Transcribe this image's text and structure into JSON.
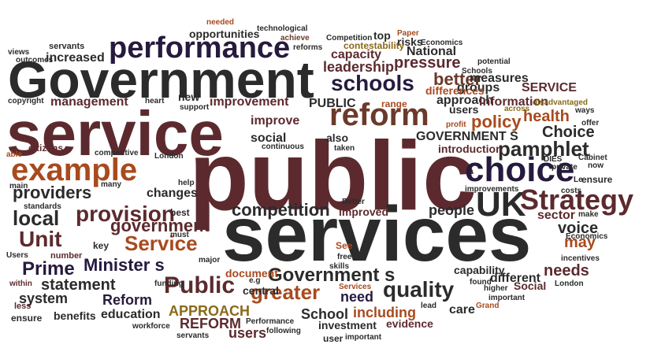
{
  "palette": {
    "dark": "#2b2b2b",
    "maroon": "#5c2a2e",
    "navy": "#261a3e",
    "rust": "#a84a1e",
    "gold": "#8a6a18",
    "brown": "#6b3a2a"
  },
  "words": [
    {
      "id": "public",
      "text": "public",
      "c": "maroon"
    },
    {
      "id": "services",
      "text": "services",
      "c": "dark"
    },
    {
      "id": "service",
      "text": "service",
      "c": "maroon"
    },
    {
      "id": "Government",
      "text": "Government",
      "c": "dark"
    },
    {
      "id": "example",
      "text": "example",
      "c": "rust"
    },
    {
      "id": "performance",
      "text": "performance",
      "c": "navy"
    },
    {
      "id": "reform",
      "text": "reform",
      "c": "brown"
    },
    {
      "id": "choice",
      "text": "choice",
      "c": "navy"
    },
    {
      "id": "UK",
      "text": "UK",
      "c": "dark"
    },
    {
      "id": "Strategy",
      "text": "Strategy",
      "c": "maroon"
    },
    {
      "id": "Unit",
      "text": "Unit",
      "c": "maroon"
    },
    {
      "id": "Public",
      "text": "Public",
      "c": "maroon"
    },
    {
      "id": "provision",
      "text": "provision",
      "c": "maroon"
    },
    {
      "id": "local",
      "text": "local",
      "c": "dark"
    },
    {
      "id": "Service",
      "text": "Service",
      "c": "rust"
    },
    {
      "id": "Minister_s",
      "text": "Minister s",
      "c": "navy"
    },
    {
      "id": "providers",
      "text": "providers",
      "c": "dark"
    },
    {
      "id": "schools",
      "text": "schools",
      "c": "navy"
    },
    {
      "id": "quality",
      "text": "quality",
      "c": "dark"
    },
    {
      "id": "greater",
      "text": "greater",
      "c": "rust"
    },
    {
      "id": "Government_s",
      "text": "Government s",
      "c": "dark"
    },
    {
      "id": "Prime",
      "text": "Prime",
      "c": "navy"
    },
    {
      "id": "pamphlet",
      "text": "pamphlet",
      "c": "dark"
    },
    {
      "id": "competition",
      "text": "competition",
      "c": "dark"
    },
    {
      "id": "government",
      "text": "government",
      "c": "maroon"
    },
    {
      "id": "health",
      "text": "health",
      "c": "rust"
    },
    {
      "id": "policy",
      "text": "policy",
      "c": "rust"
    },
    {
      "id": "Choice",
      "text": "Choice",
      "c": "dark"
    },
    {
      "id": "better",
      "text": "better",
      "c": "brown"
    },
    {
      "id": "pressure",
      "text": "pressure",
      "c": "maroon"
    },
    {
      "id": "needs",
      "text": "needs",
      "c": "maroon"
    },
    {
      "id": "voice",
      "text": "voice",
      "c": "dark"
    },
    {
      "id": "may",
      "text": "may",
      "c": "rust"
    },
    {
      "id": "statement",
      "text": "statement",
      "c": "dark"
    },
    {
      "id": "Reform",
      "text": "Reform",
      "c": "navy"
    },
    {
      "id": "REFORM",
      "text": "REFORM",
      "c": "maroon"
    },
    {
      "id": "APPROACH",
      "text": "APPROACH",
      "c": "gold"
    },
    {
      "id": "School",
      "text": "School",
      "c": "dark"
    },
    {
      "id": "need",
      "text": "need",
      "c": "navy"
    },
    {
      "id": "including",
      "text": "including",
      "c": "rust"
    },
    {
      "id": "system",
      "text": "system",
      "c": "dark"
    },
    {
      "id": "education",
      "text": "education",
      "c": "dark"
    },
    {
      "id": "users_bottom",
      "text": "users",
      "c": "maroon"
    },
    {
      "id": "people",
      "text": "people",
      "c": "dark"
    },
    {
      "id": "sector",
      "text": "sector",
      "c": "maroon"
    },
    {
      "id": "National",
      "text": "National",
      "c": "dark"
    },
    {
      "id": "leadership",
      "text": "leadership",
      "c": "maroon"
    },
    {
      "id": "capacity",
      "text": "capacity",
      "c": "maroon"
    },
    {
      "id": "increased",
      "text": "increased",
      "c": "dark"
    },
    {
      "id": "management",
      "text": "management",
      "c": "maroon"
    },
    {
      "id": "improvement",
      "text": "improvement",
      "c": "maroon"
    },
    {
      "id": "improve",
      "text": "improve",
      "c": "maroon"
    },
    {
      "id": "social",
      "text": "social",
      "c": "dark"
    },
    {
      "id": "changes",
      "text": "changes",
      "c": "dark"
    },
    {
      "id": "approach",
      "text": "approach",
      "c": "dark"
    },
    {
      "id": "information",
      "text": "information",
      "c": "maroon"
    },
    {
      "id": "SERVICE",
      "text": "SERVICE",
      "c": "maroon"
    },
    {
      "id": "measures",
      "text": "measures",
      "c": "dark"
    },
    {
      "id": "groups",
      "text": "groups",
      "c": "dark"
    },
    {
      "id": "PUBLIC",
      "text": "PUBLIC",
      "c": "dark"
    },
    {
      "id": "GOVERNMENT_S",
      "text": "GOVERNMENT S",
      "c": "dark"
    },
    {
      "id": "introduction",
      "text": "introduction",
      "c": "maroon"
    },
    {
      "id": "users_mid",
      "text": "users",
      "c": "dark"
    },
    {
      "id": "opportunities",
      "text": "opportunities",
      "c": "dark"
    },
    {
      "id": "new",
      "text": "new",
      "c": "dark"
    },
    {
      "id": "key",
      "text": "key",
      "c": "dark"
    },
    {
      "id": "best",
      "text": "best",
      "c": "dark"
    },
    {
      "id": "improved",
      "text": "improved",
      "c": "maroon"
    },
    {
      "id": "different",
      "text": "different",
      "c": "dark"
    },
    {
      "id": "capability",
      "text": "capability",
      "c": "dark"
    },
    {
      "id": "document",
      "text": "document",
      "c": "rust"
    },
    {
      "id": "central",
      "text": "central",
      "c": "dark"
    },
    {
      "id": "investment",
      "text": "investment",
      "c": "dark"
    },
    {
      "id": "care",
      "text": "care",
      "c": "dark"
    },
    {
      "id": "evidence",
      "text": "evidence",
      "c": "maroon"
    },
    {
      "id": "benefits",
      "text": "benefits",
      "c": "dark"
    },
    {
      "id": "Social",
      "text": "Social",
      "c": "maroon"
    },
    {
      "id": "top",
      "text": "top",
      "c": "dark"
    },
    {
      "id": "risks",
      "text": "risks",
      "c": "dark"
    },
    {
      "id": "differences",
      "text": "differences",
      "c": "rust"
    },
    {
      "id": "contestability",
      "text": "contestability",
      "c": "gold"
    },
    {
      "id": "also",
      "text": "also",
      "c": "dark"
    },
    {
      "id": "see_lower",
      "text": "See",
      "c": "rust"
    },
    {
      "id": "needed",
      "text": "needed",
      "c": "rust"
    },
    {
      "id": "technological",
      "text": "technological",
      "c": "dark"
    },
    {
      "id": "achieve",
      "text": "achieve",
      "c": "brown"
    },
    {
      "id": "reforms",
      "text": "reforms",
      "c": "dark"
    },
    {
      "id": "Competition",
      "text": "Competition",
      "c": "dark"
    },
    {
      "id": "Paper",
      "text": "Paper",
      "c": "rust"
    },
    {
      "id": "Economics_top",
      "text": "Economics",
      "c": "dark"
    },
    {
      "id": "servants_top",
      "text": "servants",
      "c": "dark"
    },
    {
      "id": "outcomes",
      "text": "outcomes",
      "c": "dark"
    },
    {
      "id": "views",
      "text": "views",
      "c": "dark"
    },
    {
      "id": "copyright",
      "text": "copyright",
      "c": "dark"
    },
    {
      "id": "potential",
      "text": "potential",
      "c": "dark"
    },
    {
      "id": "Schools",
      "text": "Schools",
      "c": "dark"
    },
    {
      "id": "heart",
      "text": "heart",
      "c": "dark"
    },
    {
      "id": "support",
      "text": "support",
      "c": "dark"
    },
    {
      "id": "range",
      "text": "range",
      "c": "rust"
    },
    {
      "id": "across",
      "text": "across",
      "c": "gold"
    },
    {
      "id": "profit",
      "text": "profit",
      "c": "rust"
    },
    {
      "id": "disadvantaged",
      "text": "disadvantaged",
      "c": "gold"
    },
    {
      "id": "ways",
      "text": "ways",
      "c": "dark"
    },
    {
      "id": "offer",
      "text": "offer",
      "c": "dark"
    },
    {
      "id": "now",
      "text": "now",
      "c": "dark"
    },
    {
      "id": "citizens",
      "text": "citizens",
      "c": "maroon"
    },
    {
      "id": "competitive",
      "text": "competitive",
      "c": "dark"
    },
    {
      "id": "London_top",
      "text": "London",
      "c": "dark"
    },
    {
      "id": "continuous",
      "text": "continuous",
      "c": "dark"
    },
    {
      "id": "taken",
      "text": "taken",
      "c": "dark"
    },
    {
      "id": "able",
      "text": "able",
      "c": "rust"
    },
    {
      "id": "Cabinet",
      "text": "Cabinet",
      "c": "dark"
    },
    {
      "id": "DIES",
      "text": "DIES",
      "c": "dark"
    },
    {
      "id": "private",
      "text": "private",
      "c": "dark"
    },
    {
      "id": "Le",
      "text": "Le",
      "c": "dark"
    },
    {
      "id": "ensure_right",
      "text": "ensure",
      "c": "dark"
    },
    {
      "id": "many",
      "text": "many",
      "c": "dark"
    },
    {
      "id": "help",
      "text": "help",
      "c": "dark"
    },
    {
      "id": "main",
      "text": "main",
      "c": "dark"
    },
    {
      "id": "standards",
      "text": "standards",
      "c": "dark"
    },
    {
      "id": "improvements",
      "text": "improvements",
      "c": "dark"
    },
    {
      "id": "costs",
      "text": "costs",
      "c": "dark"
    },
    {
      "id": "Better",
      "text": "Better",
      "c": "dark"
    },
    {
      "id": "make",
      "text": "make",
      "c": "dark"
    },
    {
      "id": "Economics_right",
      "text": "Economics",
      "c": "dark"
    },
    {
      "id": "must",
      "text": "must",
      "c": "dark"
    },
    {
      "id": "Users",
      "text": "Users",
      "c": "dark"
    },
    {
      "id": "number",
      "text": "number",
      "c": "maroon"
    },
    {
      "id": "major",
      "text": "major",
      "c": "dark"
    },
    {
      "id": "free",
      "text": "free",
      "c": "dark"
    },
    {
      "id": "skills",
      "text": "skills",
      "c": "dark"
    },
    {
      "id": "incentives",
      "text": "incentives",
      "c": "dark"
    },
    {
      "id": "within",
      "text": "within",
      "c": "maroon"
    },
    {
      "id": "funding",
      "text": "funding",
      "c": "dark"
    },
    {
      "id": "e_g",
      "text": "e.g",
      "c": "dark"
    },
    {
      "id": "found",
      "text": "found",
      "c": "dark"
    },
    {
      "id": "higher",
      "text": "higher",
      "c": "dark"
    },
    {
      "id": "London_bottom",
      "text": "London",
      "c": "dark"
    },
    {
      "id": "important_right",
      "text": "important",
      "c": "dark"
    },
    {
      "id": "Grand",
      "text": "Grand",
      "c": "rust"
    },
    {
      "id": "less",
      "text": "less",
      "c": "maroon"
    },
    {
      "id": "ensure_bottom",
      "text": "ensure",
      "c": "dark"
    },
    {
      "id": "workforce",
      "text": "workforce",
      "c": "dark"
    },
    {
      "id": "servants_bottom",
      "text": "servants",
      "c": "dark"
    },
    {
      "id": "Performance",
      "text": "Performance",
      "c": "dark"
    },
    {
      "id": "following",
      "text": "following",
      "c": "dark"
    },
    {
      "id": "user",
      "text": "user",
      "c": "dark"
    },
    {
      "id": "important_bottom",
      "text": "important",
      "c": "dark"
    },
    {
      "id": "lead",
      "text": "lead",
      "c": "dark"
    },
    {
      "id": "Services_small",
      "text": "Services",
      "c": "rust"
    }
  ]
}
